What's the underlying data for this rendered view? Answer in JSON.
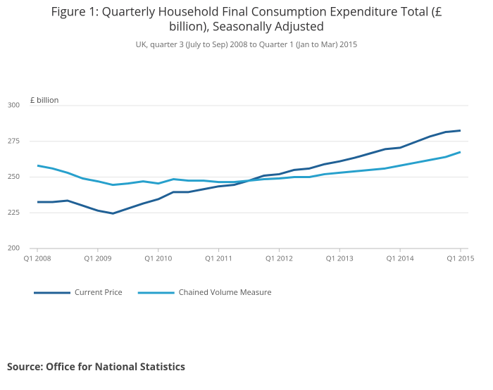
{
  "chart_data": {
    "type": "line",
    "title": "Figure 1: Quarterly Household Final Consumption Expenditure Total (£ billion), Seasonally Adjusted",
    "subtitle": "UK, quarter 3 (July to Sep) 2008 to Quarter 1 (Jan to Mar) 2015",
    "y_label": "£ billion",
    "source": "Source: Office for National Statistics",
    "categories": [
      "Q1 2008",
      null,
      null,
      null,
      "Q1 2009",
      null,
      null,
      null,
      "Q1 2010",
      null,
      null,
      null,
      "Q1 2011",
      null,
      null,
      null,
      "Q1 2012",
      null,
      null,
      null,
      "Q1 2013",
      null,
      null,
      null,
      "Q1 2014",
      null,
      null,
      null,
      "Q1 2015"
    ],
    "series": [
      {
        "name": "Current Price",
        "color": "#206095",
        "values": [
          232.5,
          232.5,
          233.5,
          230,
          226.5,
          224.5,
          228,
          231.5,
          234.5,
          239.5,
          239.5,
          241.5,
          243.5,
          244.5,
          247.5,
          251,
          252,
          255,
          256,
          259,
          261,
          263.5,
          266.5,
          269.5,
          270.5,
          274.5,
          278.5,
          281.5,
          282.5
        ]
      },
      {
        "name": "Chained Volume Measure",
        "color": "#27a0cc",
        "values": [
          258,
          256,
          253,
          249,
          247,
          244.5,
          245.5,
          247,
          245.5,
          248.5,
          247.5,
          247.5,
          246.5,
          246.5,
          247.5,
          248.5,
          249,
          250,
          250,
          252,
          253,
          254,
          255,
          256,
          258,
          260,
          262,
          264,
          267.5
        ]
      }
    ],
    "ylim": [
      200,
      300
    ],
    "yticks": [
      200,
      225,
      250,
      275,
      300
    ],
    "grid": true
  }
}
